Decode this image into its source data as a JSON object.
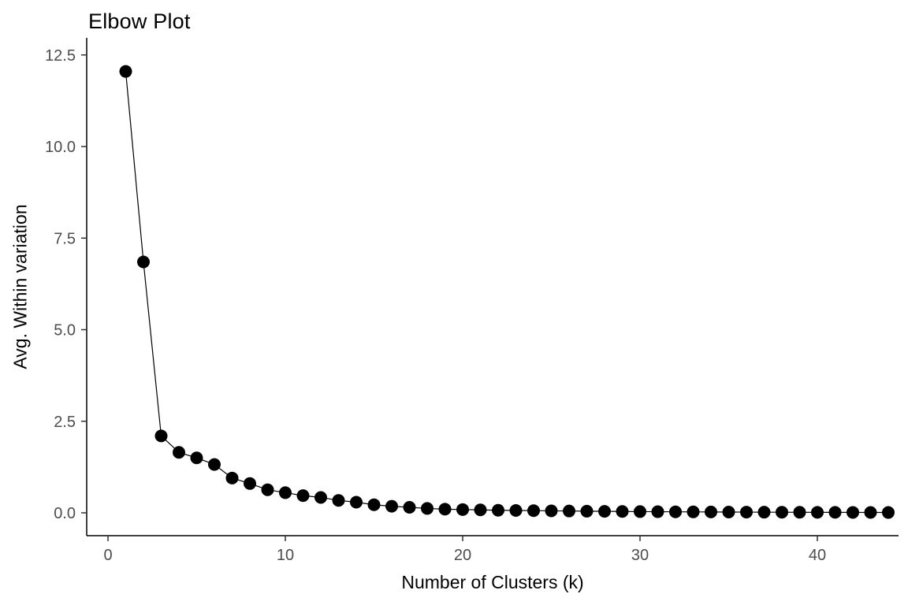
{
  "chart_data": {
    "type": "line",
    "title": "Elbow Plot",
    "xlabel": "Number of Clusters (k)",
    "ylabel": "Avg. Within variation",
    "x": [
      1,
      2,
      3,
      4,
      5,
      6,
      7,
      8,
      9,
      10,
      11,
      12,
      13,
      14,
      15,
      16,
      17,
      18,
      19,
      20,
      21,
      22,
      23,
      24,
      25,
      26,
      27,
      28,
      29,
      30,
      31,
      32,
      33,
      34,
      35,
      36,
      37,
      38,
      39,
      40,
      41,
      42,
      43,
      44
    ],
    "y": [
      12.05,
      6.85,
      2.1,
      1.65,
      1.5,
      1.32,
      0.95,
      0.8,
      0.63,
      0.55,
      0.47,
      0.42,
      0.34,
      0.29,
      0.22,
      0.18,
      0.15,
      0.12,
      0.1,
      0.09,
      0.08,
      0.07,
      0.065,
      0.06,
      0.055,
      0.05,
      0.045,
      0.04,
      0.037,
      0.034,
      0.031,
      0.028,
      0.026,
      0.024,
      0.022,
      0.02,
      0.018,
      0.017,
      0.015,
      0.014,
      0.013,
      0.012,
      0.011,
      0.01
    ],
    "x_ticks": [
      0,
      10,
      20,
      30,
      40
    ],
    "x_tick_labels": [
      "0",
      "10",
      "20",
      "30",
      "40"
    ],
    "y_ticks": [
      0.0,
      2.5,
      5.0,
      7.5,
      10.0,
      12.5
    ],
    "y_tick_labels": [
      "0.0",
      "2.5",
      "5.0",
      "7.5",
      "10.0",
      "12.5"
    ],
    "xlim": [
      -1.2,
      45.8
    ],
    "ylim": [
      -0.62,
      12.9
    ],
    "grid": false,
    "legend": false,
    "point_color": "#000000",
    "line_color": "#000000",
    "axis_color": "#000000",
    "tick_label_color": "#4d4d4d",
    "background": "#FFFFFF"
  }
}
